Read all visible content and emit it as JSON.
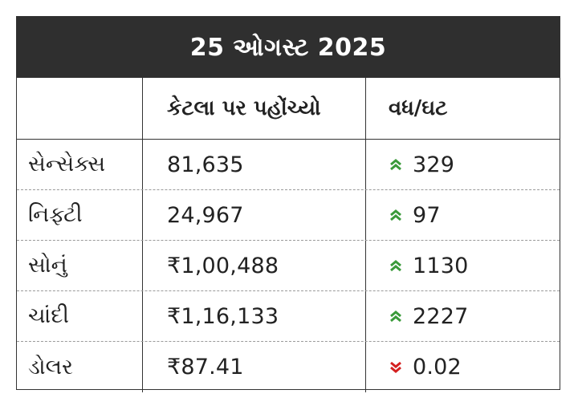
{
  "title": "25 ઓગસ્ટ 2025",
  "headers": [
    "",
    "કેટલા પર પહોંચ્યો",
    "વધ/ઘટ"
  ],
  "rows": [
    {
      "name": "સેન્સેક્સ",
      "value": "81,635",
      "change": "329",
      "direction": "up"
    },
    {
      "name": "નિફ્ટી",
      "value": "24,967",
      "change": "97",
      "direction": "up"
    },
    {
      "name": "સોનું",
      "value": "₹1,00,488",
      "change": "1130",
      "direction": "up"
    },
    {
      "name": "ચાંદી",
      "value": "₹1,16,133",
      "change": "2227",
      "direction": "up"
    },
    {
      "name": "ડોલર",
      "value": "₹87.41",
      "change": "0.02",
      "direction": "down"
    }
  ],
  "colors": {
    "up": "#3a9a3a",
    "down": "#d42020",
    "title_bg": "#2f2f2f"
  },
  "icons": {
    "up": "double-chevron-up-icon",
    "down": "double-chevron-down-icon"
  }
}
